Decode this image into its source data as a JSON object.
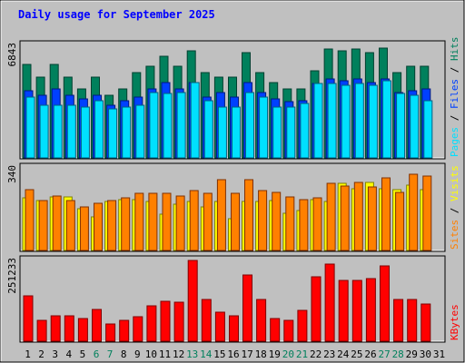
{
  "colors": {
    "background": "#c0c0c0",
    "title": "#0000ff",
    "hits": "#00805c",
    "files": "#0040ff",
    "pages": "#00e0ff",
    "visits": "#ffff00",
    "sites": "#ff8000",
    "kbytes": "#ff0000",
    "weekend_day": "#00805c"
  },
  "chart_data": [
    {
      "type": "bar",
      "title": "Daily usage for September 2025",
      "ylabel_max": "6843",
      "ylim": [
        0,
        6843
      ],
      "legend": [
        "Pages",
        "Files",
        "Hits"
      ],
      "categories": [
        "1",
        "2",
        "3",
        "4",
        "5",
        "6",
        "7",
        "8",
        "9",
        "10",
        "11",
        "12",
        "13",
        "14",
        "15",
        "16",
        "17",
        "18",
        "19",
        "20",
        "21",
        "22",
        "23",
        "24",
        "25",
        "26",
        "27",
        "28",
        "29",
        "30",
        "31"
      ],
      "series": [
        {
          "name": "Hits",
          "values": [
            5700,
            4900,
            5700,
            4900,
            4200,
            4900,
            3800,
            4200,
            5200,
            5600,
            6200,
            5600,
            6500,
            5200,
            4900,
            4900,
            6400,
            5200,
            4600,
            4200,
            4200,
            5300,
            6600,
            6500,
            6600,
            6400,
            6700,
            5200,
            5600,
            5600,
            0
          ]
        },
        {
          "name": "Files",
          "values": [
            4100,
            3800,
            4200,
            3800,
            3600,
            3800,
            3200,
            3500,
            3700,
            4200,
            4600,
            4200,
            4600,
            3700,
            4000,
            3700,
            4600,
            4000,
            3600,
            3400,
            3500,
            4500,
            4800,
            4700,
            4800,
            4600,
            4800,
            4000,
            4100,
            4200,
            0
          ]
        },
        {
          "name": "Pages",
          "values": [
            3700,
            3200,
            3200,
            3200,
            3100,
            3500,
            3000,
            3100,
            3200,
            4000,
            3900,
            4000,
            4600,
            3500,
            3100,
            3100,
            4000,
            3700,
            3100,
            3100,
            3300,
            4500,
            4500,
            4400,
            4500,
            4400,
            4700,
            3900,
            3800,
            3500,
            0
          ]
        }
      ]
    },
    {
      "type": "bar",
      "ylabel_max": "340",
      "ylim": [
        0,
        340
      ],
      "legend": [
        "Sites",
        "Visits"
      ],
      "categories": [
        "1",
        "2",
        "3",
        "4",
        "5",
        "6",
        "7",
        "8",
        "9",
        "10",
        "11",
        "12",
        "13",
        "14",
        "15",
        "16",
        "17",
        "18",
        "19",
        "20",
        "21",
        "22",
        "23",
        "24",
        "25",
        "26",
        "27",
        "28",
        "29",
        "30",
        "31"
      ],
      "series": [
        {
          "name": "Visits",
          "values": [
            215,
            205,
            220,
            220,
            170,
            140,
            200,
            210,
            210,
            200,
            150,
            190,
            200,
            180,
            200,
            130,
            200,
            200,
            205,
            155,
            165,
            210,
            200,
            275,
            255,
            280,
            255,
            250,
            270,
            250,
            0
          ]
        },
        {
          "name": "Sites",
          "values": [
            250,
            205,
            225,
            205,
            180,
            195,
            205,
            215,
            235,
            235,
            235,
            225,
            245,
            235,
            290,
            235,
            290,
            245,
            240,
            220,
            210,
            215,
            275,
            265,
            280,
            260,
            300,
            240,
            315,
            305,
            0
          ]
        }
      ]
    },
    {
      "type": "bar",
      "ylabel_max": "251233",
      "ylim": [
        0,
        251233
      ],
      "legend": [
        "KBytes"
      ],
      "categories": [
        "1",
        "2",
        "3",
        "4",
        "5",
        "6",
        "7",
        "8",
        "9",
        "10",
        "11",
        "12",
        "13",
        "14",
        "15",
        "16",
        "17",
        "18",
        "19",
        "20",
        "21",
        "22",
        "23",
        "24",
        "25",
        "26",
        "27",
        "28",
        "29",
        "30",
        "31"
      ],
      "series": [
        {
          "name": "KBytes",
          "values": [
            140000,
            65000,
            80000,
            80000,
            70000,
            100000,
            55000,
            65000,
            75000,
            110000,
            125000,
            120000,
            251000,
            130000,
            90000,
            80000,
            205000,
            130000,
            70000,
            65000,
            95000,
            200000,
            240000,
            190000,
            190000,
            195000,
            235000,
            130000,
            130000,
            115000,
            0
          ]
        }
      ]
    }
  ]
}
